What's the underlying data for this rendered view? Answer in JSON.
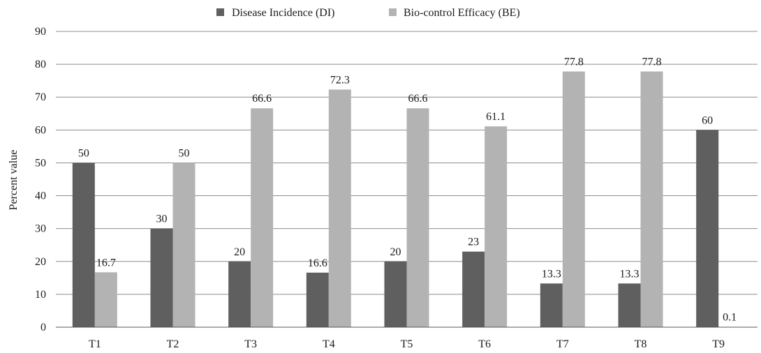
{
  "chart_data": {
    "type": "bar",
    "title": "",
    "xlabel": "",
    "ylabel": "Percent value",
    "ylim": [
      0,
      90
    ],
    "yticks": [
      0,
      10,
      20,
      30,
      40,
      50,
      60,
      70,
      80,
      90
    ],
    "grid": true,
    "legend_position": "top-center",
    "categories": [
      "T1",
      "T2",
      "T3",
      "T4",
      "T5",
      "T6",
      "T7",
      "T8",
      "T9"
    ],
    "series": [
      {
        "name": "Disease Incidence (DI)",
        "color": "#5f5f5f",
        "values": [
          50,
          30,
          20,
          16.6,
          20,
          23,
          13.3,
          13.3,
          60
        ],
        "labels": [
          "50",
          "30",
          "20",
          "16.6",
          "20",
          "23",
          "13.3",
          "13.3",
          "60"
        ]
      },
      {
        "name": "Bio-control Efficacy (BE)",
        "color": "#b3b3b3",
        "values": [
          16.7,
          50,
          66.6,
          72.3,
          66.6,
          61.1,
          77.8,
          77.8,
          0.1
        ],
        "labels": [
          "16.7",
          "50",
          "66.6",
          "72.3",
          "66.6",
          "61.1",
          "77.8",
          "77.8",
          "0.1"
        ]
      }
    ]
  }
}
